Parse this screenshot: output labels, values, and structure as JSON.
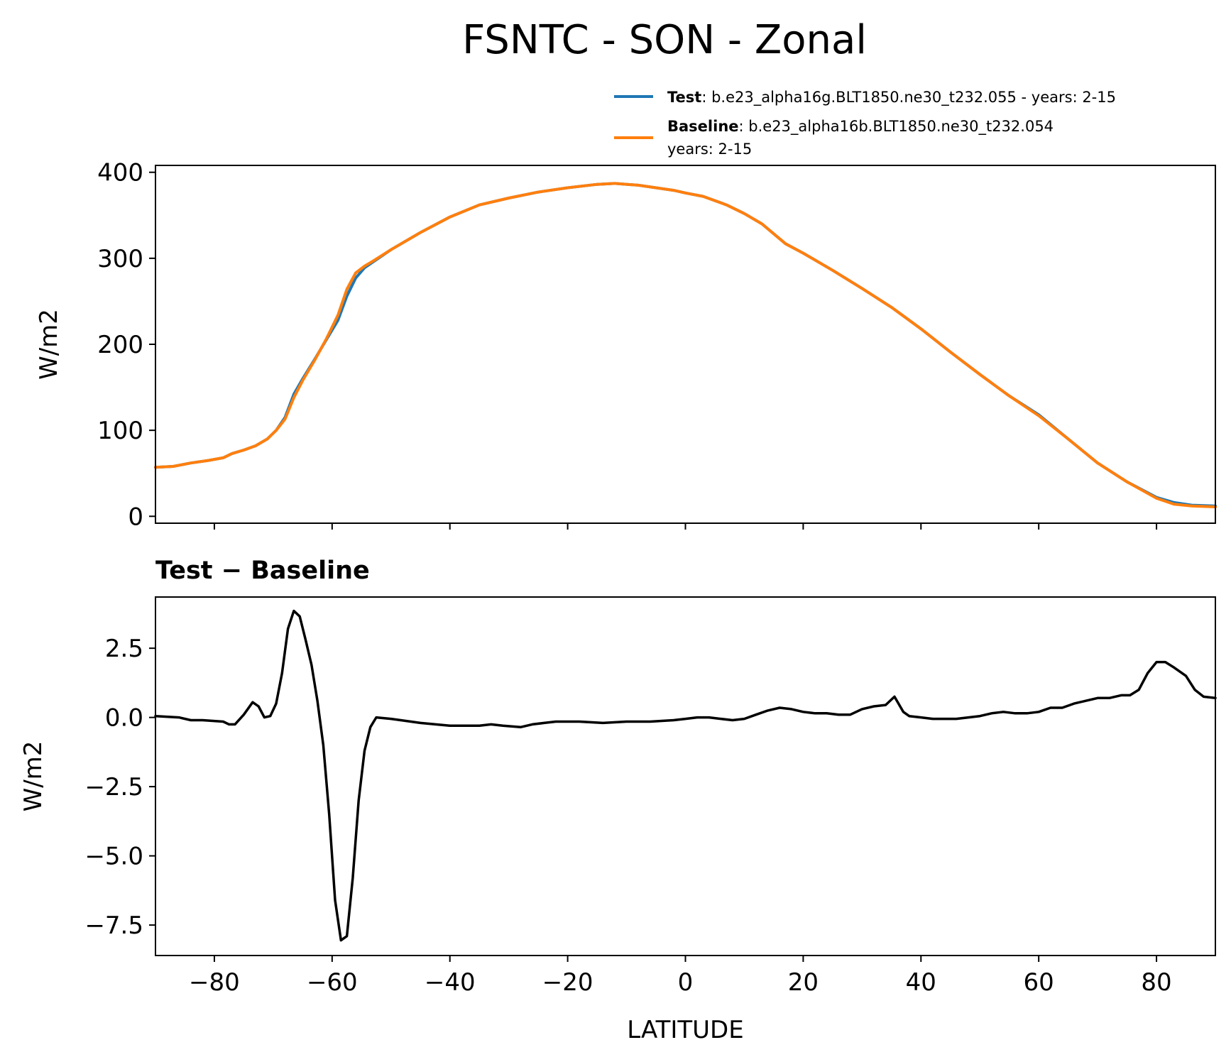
{
  "figure": {
    "title": "FSNTC - SON - Zonal"
  },
  "legend": {
    "test_name": "Test",
    "test_desc": ": b.e23_alpha16g.BLT1850.ne30_t232.055 - years: 2-15",
    "test_color": "#1f77b4",
    "baseline_name": "Baseline",
    "baseline_desc": ": b.e23_alpha16b.BLT1850.ne30_t232.054",
    "baseline_desc2": "years: 2-15",
    "baseline_color": "#ff7f0e"
  },
  "chart_data": [
    {
      "type": "line",
      "ylabel": "W/m2",
      "xlim": [
        -90,
        90
      ],
      "ylim": [
        -8,
        408
      ],
      "yticks": [
        0,
        100,
        200,
        300,
        400
      ],
      "ytick_labels": [
        "0",
        "100",
        "200",
        "300",
        "400"
      ],
      "xticks": [
        -80,
        -60,
        -40,
        -20,
        0,
        20,
        40,
        60,
        80
      ],
      "series": [
        {
          "name": "Test",
          "color": "#1f77b4",
          "x": [
            -90,
            -87,
            -84,
            -81,
            -78.5,
            -77,
            -75,
            -73,
            -71,
            -69.5,
            -68,
            -66.5,
            -65,
            -63,
            -61,
            -59,
            -57.5,
            -56,
            -54.5,
            -53,
            -50,
            -45,
            -40,
            -35,
            -30,
            -25,
            -20,
            -15,
            -12,
            -8,
            -5,
            -2,
            0,
            3,
            7,
            10,
            13,
            17,
            20,
            25,
            30,
            35,
            40,
            45,
            50,
            55,
            60,
            65,
            70,
            75,
            80,
            83,
            86,
            90
          ],
          "values": [
            57,
            58,
            62,
            65,
            68,
            73,
            77,
            82,
            90,
            100,
            115,
            142,
            160,
            182,
            205,
            228,
            256,
            277,
            289,
            296,
            310,
            330,
            348,
            362,
            370,
            377,
            382,
            386,
            387,
            385,
            382,
            379,
            376,
            372,
            362,
            352,
            340,
            317,
            306,
            286,
            265,
            243,
            218,
            191,
            165,
            140,
            118,
            90,
            62,
            40,
            22,
            16,
            13,
            12
          ]
        },
        {
          "name": "Baseline",
          "color": "#ff7f0e",
          "x": [
            -90,
            -87,
            -84,
            -81,
            -78.5,
            -77,
            -75,
            -73,
            -71,
            -69.5,
            -68,
            -66.5,
            -65,
            -63,
            -61,
            -59,
            -57.5,
            -56,
            -54.5,
            -53,
            -50,
            -45,
            -40,
            -35,
            -30,
            -25,
            -20,
            -15,
            -12,
            -8,
            -5,
            -2,
            0,
            3,
            7,
            10,
            13,
            17,
            20,
            25,
            30,
            35,
            40,
            45,
            50,
            55,
            60,
            65,
            70,
            75,
            80,
            83,
            86,
            90
          ],
          "values": [
            57,
            58,
            62,
            65,
            68,
            73,
            77,
            82,
            90,
            100,
            113,
            138,
            158,
            181,
            206,
            234,
            264,
            283,
            291,
            297,
            310,
            330,
            348,
            362,
            370,
            377,
            382,
            386,
            387,
            385,
            382,
            379,
            376,
            372,
            362,
            352,
            340,
            317,
            306,
            286,
            265,
            243,
            218,
            191,
            165,
            140,
            117,
            90,
            62,
            40,
            21,
            14,
            12,
            11
          ]
        }
      ]
    },
    {
      "type": "line",
      "title": "Test − Baseline",
      "xlabel": "LATITUDE",
      "ylabel": "W/m2",
      "xlim": [
        -90,
        90
      ],
      "ylim": [
        -8.6,
        4.35
      ],
      "yticks": [
        2.5,
        0.0,
        -2.5,
        -5.0,
        -7.5
      ],
      "ytick_labels": [
        "2.5",
        "0.0",
        "−2.5",
        "−5.0",
        "−7.5"
      ],
      "xticks": [
        -80,
        -60,
        -40,
        -20,
        0,
        20,
        40,
        60,
        80
      ],
      "xtick_labels": [
        "−80",
        "−60",
        "−40",
        "−20",
        "0",
        "20",
        "40",
        "60",
        "80"
      ],
      "series": [
        {
          "name": "Test − Baseline",
          "color": "#000000",
          "x": [
            -90,
            -86,
            -84,
            -82,
            -78.5,
            -77.5,
            -76.5,
            -75,
            -73.5,
            -72.5,
            -71.5,
            -70.5,
            -69.5,
            -68.5,
            -67.5,
            -66.5,
            -65.5,
            -64.5,
            -63.5,
            -62.5,
            -61.5,
            -60.5,
            -59.5,
            -58.5,
            -57.5,
            -56.5,
            -55.5,
            -54.5,
            -53.5,
            -52.5,
            -50,
            -45,
            -40,
            -35,
            -33,
            -31,
            -28,
            -26,
            -24,
            -22,
            -20,
            -18,
            -14,
            -10,
            -6,
            -2,
            0,
            2,
            4,
            6,
            8,
            10,
            12,
            14,
            16,
            18,
            20,
            22,
            24,
            26,
            28,
            30,
            32,
            34,
            35.5,
            37,
            38,
            40,
            42,
            46,
            50,
            52,
            54,
            56,
            58,
            60,
            62,
            64,
            66,
            68,
            70,
            72,
            74,
            75.5,
            77,
            78.5,
            80,
            81.5,
            83,
            85,
            86.5,
            88,
            90
          ],
          "values": [
            0.05,
            0.0,
            -0.1,
            -0.1,
            -0.15,
            -0.25,
            -0.25,
            0.1,
            0.55,
            0.4,
            0.0,
            0.05,
            0.5,
            1.6,
            3.2,
            3.85,
            3.65,
            2.8,
            1.9,
            0.6,
            -1.0,
            -3.5,
            -6.6,
            -8.05,
            -7.9,
            -5.8,
            -3.0,
            -1.2,
            -0.35,
            0.0,
            -0.05,
            -0.2,
            -0.3,
            -0.3,
            -0.25,
            -0.3,
            -0.35,
            -0.25,
            -0.2,
            -0.15,
            -0.15,
            -0.15,
            -0.2,
            -0.15,
            -0.15,
            -0.1,
            -0.05,
            0.0,
            0.0,
            -0.05,
            -0.1,
            -0.05,
            0.1,
            0.25,
            0.35,
            0.3,
            0.2,
            0.15,
            0.15,
            0.1,
            0.1,
            0.3,
            0.4,
            0.45,
            0.75,
            0.2,
            0.05,
            0.0,
            -0.05,
            -0.05,
            0.05,
            0.15,
            0.2,
            0.15,
            0.15,
            0.2,
            0.35,
            0.35,
            0.5,
            0.6,
            0.7,
            0.7,
            0.8,
            0.8,
            1.0,
            1.6,
            2.0,
            2.0,
            1.8,
            1.5,
            1.0,
            0.75,
            0.7
          ]
        }
      ]
    }
  ]
}
